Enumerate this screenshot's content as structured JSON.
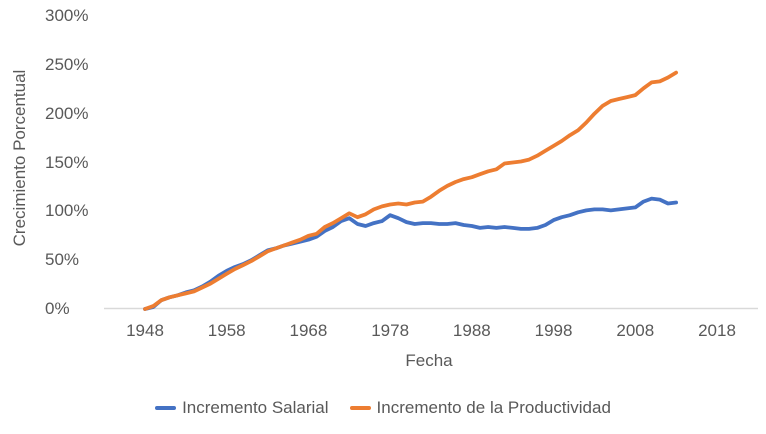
{
  "chart_data": {
    "type": "line",
    "title": "",
    "xlabel": "Fecha",
    "ylabel": "Crecimiento Porcentual",
    "x_ticks": [
      "1948",
      "1958",
      "1968",
      "1978",
      "1988",
      "1998",
      "2008",
      "2018"
    ],
    "y_ticks": [
      "300%",
      "250%",
      "200%",
      "150%",
      "100%",
      "50%",
      "0%"
    ],
    "x_range": [
      1943,
      2023
    ],
    "y_range": [
      0,
      300
    ],
    "grid": false,
    "legend_position": "bottom",
    "colors": {
      "text": "#595959",
      "axis_line": "#D9D9D9"
    },
    "x": [
      1948,
      1949,
      1950,
      1951,
      1952,
      1953,
      1954,
      1955,
      1956,
      1957,
      1958,
      1959,
      1960,
      1961,
      1962,
      1963,
      1964,
      1965,
      1966,
      1967,
      1968,
      1969,
      1970,
      1971,
      1972,
      1973,
      1974,
      1975,
      1976,
      1977,
      1978,
      1979,
      1980,
      1981,
      1982,
      1983,
      1984,
      1985,
      1986,
      1987,
      1988,
      1989,
      1990,
      1991,
      1992,
      1993,
      1994,
      1995,
      1996,
      1997,
      1998,
      1999,
      2000,
      2001,
      2002,
      2003,
      2004,
      2005,
      2006,
      2007,
      2008,
      2009,
      2010,
      2011,
      2012,
      2013
    ],
    "series": [
      {
        "name": "Incremento Salarial",
        "color": "#4472C4",
        "values": [
          0,
          2,
          9,
          12,
          14,
          17,
          19,
          23,
          28,
          34,
          39,
          43,
          46,
          50,
          55,
          60,
          62,
          65,
          67,
          69,
          71,
          74,
          80,
          84,
          90,
          93,
          87,
          85,
          88,
          90,
          96,
          93,
          89,
          87,
          88,
          88,
          87,
          87,
          88,
          86,
          85,
          83,
          84,
          83,
          84,
          83,
          82,
          82,
          83,
          86,
          91,
          94,
          96,
          99,
          101,
          102,
          102,
          101,
          102,
          103,
          104,
          110,
          113,
          112,
          108,
          109
        ]
      },
      {
        "name": "Incremento de la Productividad",
        "color": "#ED7D31",
        "values": [
          0,
          3,
          9,
          12,
          14,
          16,
          18,
          22,
          26,
          31,
          36,
          41,
          45,
          49,
          54,
          59,
          62,
          65,
          68,
          71,
          75,
          77,
          84,
          88,
          93,
          98,
          94,
          97,
          102,
          105,
          107,
          108,
          107,
          109,
          110,
          115,
          121,
          126,
          130,
          133,
          135,
          138,
          141,
          143,
          149,
          150,
          151,
          153,
          157,
          162,
          167,
          172,
          178,
          183,
          191,
          200,
          208,
          213,
          215,
          217,
          219,
          226,
          232,
          233,
          237,
          242
        ]
      }
    ]
  }
}
